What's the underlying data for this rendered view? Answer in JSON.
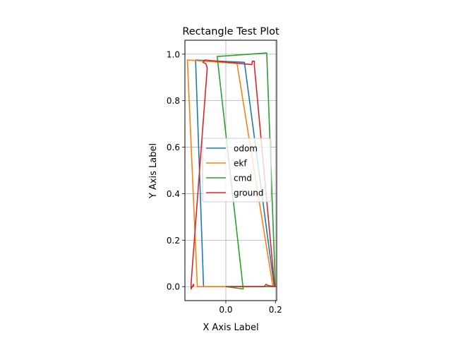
{
  "chart_data": {
    "type": "line",
    "title": "Rectangle Test Plot",
    "xlabel": "X Axis Label",
    "ylabel": "Y Axis Label",
    "xlim": [
      -0.165,
      0.205
    ],
    "ylim": [
      -0.06,
      1.06
    ],
    "xticks": [
      {
        "value": 0.0,
        "label": "0.0"
      },
      {
        "value": 0.2,
        "label": "0.2"
      }
    ],
    "yticks": [
      {
        "value": 0.0,
        "label": "0.0"
      },
      {
        "value": 0.2,
        "label": "0.2"
      },
      {
        "value": 0.4,
        "label": "0.4"
      },
      {
        "value": 0.6,
        "label": "0.6"
      },
      {
        "value": 0.8,
        "label": "0.8"
      },
      {
        "value": 1.0,
        "label": "1.0"
      }
    ],
    "grid": true,
    "legend_position": "center-right",
    "series": [
      {
        "name": "odom",
        "color": "#1f77b4",
        "points": [
          [
            0.0,
            0.0
          ],
          [
            0.195,
            0.0
          ],
          [
            0.075,
            0.965
          ],
          [
            -0.122,
            0.975
          ],
          [
            -0.09,
            0.0
          ],
          [
            0.0,
            0.0
          ]
        ]
      },
      {
        "name": "ekf",
        "color": "#ff7f0e",
        "points": [
          [
            0.0,
            0.0
          ],
          [
            0.19,
            0.0
          ],
          [
            0.045,
            0.96
          ],
          [
            -0.155,
            0.975
          ],
          [
            -0.115,
            0.0
          ],
          [
            0.0,
            0.0
          ]
        ]
      },
      {
        "name": "cmd",
        "color": "#2ca02c",
        "points": [
          [
            0.0,
            0.0
          ],
          [
            0.2,
            0.0
          ],
          [
            0.165,
            1.005
          ],
          [
            -0.035,
            0.99
          ],
          [
            0.07,
            -0.01
          ],
          [
            0.0,
            0.0
          ]
        ]
      },
      {
        "name": "ground",
        "color": "#d62728",
        "points": [
          [
            0.0,
            0.0
          ],
          [
            0.155,
            0.0
          ],
          [
            0.162,
            0.01
          ],
          [
            0.17,
            0.005
          ],
          [
            0.2,
            0.0
          ],
          [
            0.195,
            0.02
          ],
          [
            0.115,
            0.95
          ],
          [
            0.115,
            0.97
          ],
          [
            0.107,
            0.97
          ],
          [
            0.105,
            0.955
          ],
          [
            -0.085,
            0.975
          ],
          [
            -0.092,
            0.965
          ],
          [
            -0.08,
            0.958
          ],
          [
            -0.075,
            0.94
          ],
          [
            -0.14,
            0.015
          ],
          [
            -0.14,
            -0.01
          ],
          [
            -0.135,
            0.0
          ],
          [
            -0.13,
            0.01
          ],
          [
            -0.13,
            0.0
          ]
        ]
      }
    ]
  }
}
